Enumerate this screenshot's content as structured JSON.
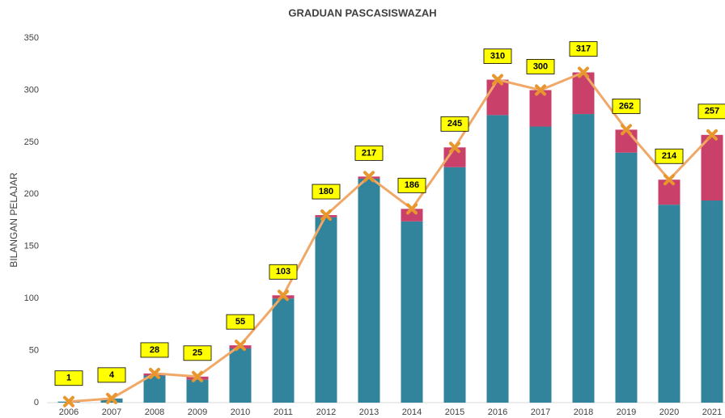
{
  "chart_data": {
    "type": "bar",
    "stacked": true,
    "title": "GRADUAN PASCASISWAZAH",
    "y_label": "BILANGAN PELAJAR",
    "categories": [
      "2006",
      "2007",
      "2008",
      "2009",
      "2010",
      "2011",
      "2012",
      "2013",
      "2014",
      "2015",
      "2016",
      "2017",
      "2018",
      "2019",
      "2020",
      "2021"
    ],
    "series": [
      {
        "color": "#31849b",
        "values": [
          1,
          4,
          26,
          22,
          52,
          100,
          178,
          215,
          174,
          226,
          276,
          265,
          277,
          240,
          190,
          194
        ]
      },
      {
        "color": "#c9406a",
        "values": [
          0,
          0,
          2,
          3,
          3,
          3,
          2,
          2,
          12,
          19,
          34,
          35,
          40,
          22,
          24,
          63
        ]
      },
      {
        "color": "#f0a868",
        "type": "line",
        "marker_color": "#e8962e",
        "values": [
          1,
          4,
          28,
          25,
          55,
          103,
          180,
          217,
          186,
          245,
          310,
          300,
          317,
          262,
          214,
          257
        ]
      }
    ],
    "ylim": [
      0,
      350
    ],
    "yticks": [
      0,
      50,
      100,
      150,
      200,
      250,
      300,
      350
    ],
    "grid": false
  }
}
